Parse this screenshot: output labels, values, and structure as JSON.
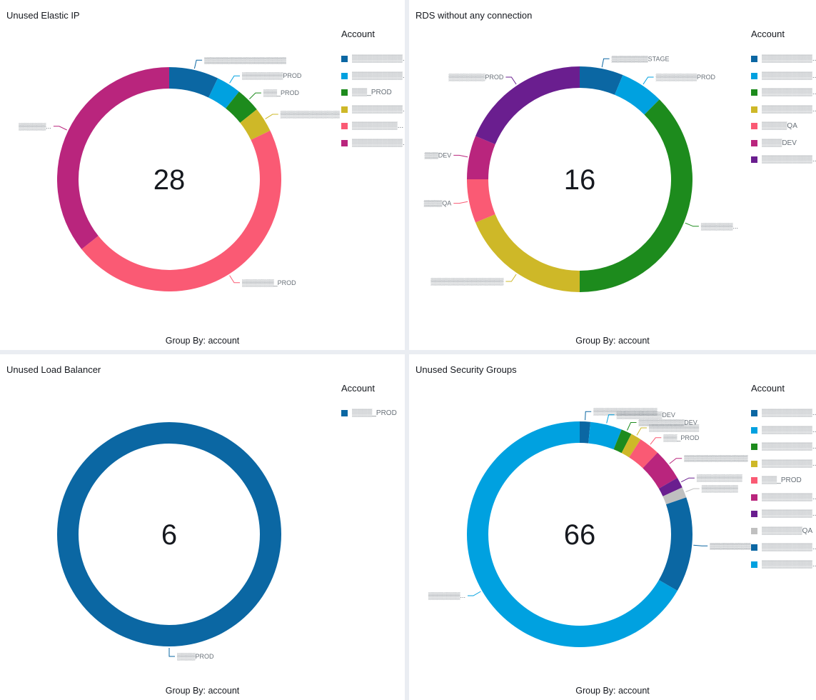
{
  "group_by_label": "Group By: account",
  "legend_title": "Account",
  "chart_data": [
    {
      "type": "pie",
      "title": "Unused Elastic IP",
      "total": "28",
      "slices": [
        {
          "label": "▒▒▒▒▒▒▒▒▒▒▒▒▒▒▒▒▒▒",
          "legend": "▒▒▒▒▒▒▒▒▒▒...",
          "value": 2,
          "color": "#0b67a3"
        },
        {
          "label": "▒▒▒▒▒▒▒▒▒PROD",
          "legend": "▒▒▒▒▒▒▒▒▒▒...",
          "value": 1,
          "color": "#00a1e0"
        },
        {
          "label": "▒▒▒_PROD",
          "legend": "▒▒▒_PROD",
          "value": 1,
          "color": "#1d8b1d"
        },
        {
          "label": "▒▒▒▒▒▒▒▒▒▒▒▒▒",
          "legend": "▒▒▒▒▒▒▒▒▒▒...",
          "value": 1,
          "color": "#ceb828"
        },
        {
          "label": "▒▒▒▒▒▒▒_PROD",
          "legend": "▒▒▒▒▒▒▒▒▒...",
          "value": 13,
          "color": "#fa5a74"
        },
        {
          "label": "▒▒▒▒▒▒...",
          "legend": "▒▒▒▒▒▒▒▒▒▒...",
          "value": 10,
          "color": "#b9257d"
        }
      ]
    },
    {
      "type": "pie",
      "title": "RDS without any connection",
      "total": "16",
      "slices": [
        {
          "label": "▒▒▒▒▒▒▒▒STAGE",
          "legend": "▒▒▒▒▒▒▒▒▒▒...",
          "value": 1,
          "color": "#0b67a3"
        },
        {
          "label": "▒▒▒▒▒▒▒▒▒PROD",
          "legend": "▒▒▒▒▒▒▒▒▒▒...",
          "value": 1,
          "color": "#00a1e0"
        },
        {
          "label": "▒▒▒▒▒▒▒...",
          "legend": "▒▒▒▒▒▒▒▒▒▒...",
          "value": 6,
          "color": "#1d8b1d"
        },
        {
          "label": "▒▒▒▒▒▒▒▒▒▒▒▒▒▒▒▒",
          "legend": "▒▒▒▒▒▒▒▒▒▒...",
          "value": 3,
          "color": "#ceb828"
        },
        {
          "label": "▒▒▒▒QA",
          "legend": "▒▒▒▒▒QA",
          "value": 1,
          "color": "#fa5a74"
        },
        {
          "label": "▒▒▒DEV",
          "legend": "▒▒▒▒DEV",
          "value": 1,
          "color": "#b9257d"
        },
        {
          "label": "▒▒▒▒▒▒▒▒PROD",
          "legend": "▒▒▒▒▒▒▒▒▒▒...",
          "value": 3,
          "color": "#6a1e8f"
        }
      ]
    },
    {
      "type": "pie",
      "title": "Unused Load Balancer",
      "total": "6",
      "slices": [
        {
          "label": "▒▒▒▒PROD",
          "legend": "▒▒▒▒_PROD",
          "value": 6,
          "color": "#0b67a3"
        }
      ]
    },
    {
      "type": "pie",
      "title": "Unused Security Groups",
      "total": "66",
      "slices": [
        {
          "label": "▒▒▒▒▒▒▒▒▒▒▒▒▒▒",
          "legend": "▒▒▒▒▒▒▒▒▒▒...",
          "value": 1,
          "color": "#0b67a3"
        },
        {
          "label": "▒▒▒▒▒▒▒▒▒▒DEV",
          "legend": "▒▒▒▒▒▒▒▒▒▒...",
          "value": 3,
          "color": "#00a1e0"
        },
        {
          "label": "▒▒▒▒▒▒▒▒▒▒DEV",
          "legend": "▒▒▒▒▒▒▒▒▒▒...",
          "value": 1,
          "color": "#1d8b1d"
        },
        {
          "label": "▒▒▒▒▒▒▒▒▒▒▒",
          "legend": "▒▒▒▒▒▒▒▒▒▒...",
          "value": 1,
          "color": "#ceb828"
        },
        {
          "label": "▒▒▒_PROD",
          "legend": "▒▒▒_PROD",
          "value": 2,
          "color": "#fa5a74"
        },
        {
          "label": "▒▒▒▒▒▒▒▒▒▒▒▒▒▒",
          "legend": "▒▒▒▒▒▒▒▒▒▒...",
          "value": 3,
          "color": "#b9257d"
        },
        {
          "label": "▒▒▒▒▒▒▒▒▒▒",
          "legend": "▒▒▒▒▒▒▒▒▒▒...",
          "value": 1,
          "color": "#6a1e8f"
        },
        {
          "label": "▒▒▒▒▒▒▒▒",
          "legend": "▒▒▒▒▒▒▒▒QA",
          "value": 1,
          "color": "#c0c0c0"
        },
        {
          "label": "▒▒▒▒▒▒▒▒▒",
          "legend": "▒▒▒▒▒▒▒▒▒▒...",
          "value": 9,
          "color": "#0b67a3"
        },
        {
          "label": "▒▒▒▒▒▒▒...",
          "legend": "▒▒▒▒▒▒▒▒▒▒...",
          "value": 44,
          "color": "#00a1e0"
        }
      ]
    }
  ]
}
